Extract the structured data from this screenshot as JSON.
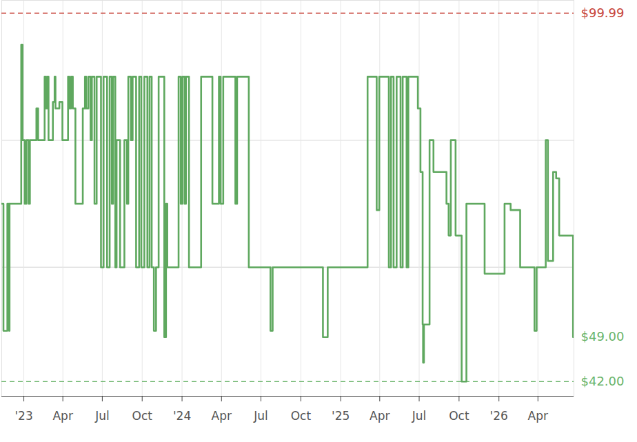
{
  "chart_data": {
    "type": "line",
    "line_style": "step",
    "color": "#5fa85f",
    "grid": true,
    "tick_labels": "x",
    "xlim": [
      "2022-11-11",
      "2026-06-23"
    ],
    "xticks": [
      {
        "value": "2023-01-01",
        "label": "'23"
      },
      {
        "value": "2023-04-01",
        "label": "Apr"
      },
      {
        "value": "2023-07-01",
        "label": "Jul"
      },
      {
        "value": "2023-10-01",
        "label": "Oct"
      },
      {
        "value": "2024-01-01",
        "label": "'24"
      },
      {
        "value": "2024-04-01",
        "label": "Apr"
      },
      {
        "value": "2024-07-01",
        "label": "Jul"
      },
      {
        "value": "2024-10-01",
        "label": "Oct"
      },
      {
        "value": "2025-01-01",
        "label": "'25"
      },
      {
        "value": "2025-04-01",
        "label": "Apr"
      },
      {
        "value": "2025-07-01",
        "label": "Jul"
      },
      {
        "value": "2025-10-01",
        "label": "Oct"
      },
      {
        "value": "2026-01-01",
        "label": "'26"
      },
      {
        "value": "2026-04-01",
        "label": "Apr"
      }
    ],
    "ylim": [
      39.7,
      102
    ],
    "yticks": [
      60,
      80
    ],
    "annotations": [
      {
        "value": 99.99,
        "label": "$99.99",
        "color": "#c8463c",
        "line_style": "dashed"
      },
      {
        "value": 49,
        "label": "$49.00",
        "color": "#6ab46a"
      },
      {
        "value": 42,
        "label": "$42.00",
        "color": "#6ab46a",
        "line_style": "dashed"
      }
    ],
    "x": [
      "2022-11-11",
      "2022-11-15",
      "2022-11-24",
      "2022-11-28",
      "2022-11-29",
      "2022-12-26",
      "2022-12-29",
      "2023-01-03",
      "2023-01-07",
      "2023-01-12",
      "2023-01-15",
      "2023-01-30",
      "2023-02-03",
      "2023-02-18",
      "2023-02-21",
      "2023-02-24",
      "2023-02-27",
      "2023-03-09",
      "2023-03-13",
      "2023-03-15",
      "2023-03-24",
      "2023-03-31",
      "2023-04-13",
      "2023-04-16",
      "2023-04-20",
      "2023-04-24",
      "2023-04-30",
      "2023-05-17",
      "2023-05-22",
      "2023-05-25",
      "2023-05-30",
      "2023-06-04",
      "2023-06-07",
      "2023-06-13",
      "2023-06-18",
      "2023-06-28",
      "2023-07-04",
      "2023-07-12",
      "2023-07-18",
      "2023-07-23",
      "2023-07-26",
      "2023-07-31",
      "2023-08-03",
      "2023-08-11",
      "2023-08-21",
      "2023-08-27",
      "2023-08-30",
      "2023-09-05",
      "2023-09-09",
      "2023-09-17",
      "2023-09-24",
      "2023-09-29",
      "2023-10-06",
      "2023-10-13",
      "2023-10-18",
      "2023-10-23",
      "2023-10-28",
      "2023-11-02",
      "2023-11-08",
      "2023-11-21",
      "2023-11-25",
      "2023-11-28",
      "2023-12-24",
      "2023-12-29",
      "2024-01-02",
      "2024-01-07",
      "2024-01-10",
      "2024-01-17",
      "2024-02-14",
      "2024-03-11",
      "2024-03-26",
      "2024-03-30",
      "2024-04-05",
      "2024-05-03",
      "2024-05-07",
      "2024-06-03",
      "2024-07-23",
      "2024-07-28",
      "2024-11-21",
      "2024-12-02",
      "2025-03-04",
      "2025-03-25",
      "2025-03-31",
      "2025-04-22",
      "2025-04-27",
      "2025-05-03",
      "2025-05-10",
      "2025-05-19",
      "2025-05-24",
      "2025-06-02",
      "2025-06-06",
      "2025-06-28",
      "2025-07-04",
      "2025-07-09",
      "2025-07-10",
      "2025-07-12",
      "2025-07-25",
      "2025-08-03",
      "2025-09-02",
      "2025-09-07",
      "2025-09-12",
      "2025-09-23",
      "2025-10-07",
      "2025-10-18",
      "2025-11-29",
      "2026-01-14",
      "2026-01-28",
      "2026-02-19",
      "2026-03-24",
      "2026-03-29",
      "2026-04-19",
      "2026-04-24",
      "2026-05-06",
      "2026-05-13",
      "2026-05-20",
      "2026-06-21",
      "2026-06-23"
    ],
    "values": [
      69.99,
      49.99,
      69.99,
      49.99,
      69.99,
      95,
      79.99,
      69.99,
      79.99,
      69.99,
      79.99,
      84.99,
      79.99,
      89.99,
      84.99,
      89.99,
      79.99,
      85.99,
      89.99,
      84.99,
      85.99,
      79.99,
      89.99,
      84.99,
      89.99,
      84.99,
      69.99,
      84.99,
      89.99,
      84.99,
      89.99,
      79.99,
      89.99,
      69.99,
      89.99,
      59.99,
      89.99,
      59.99,
      89.99,
      69.99,
      89.99,
      59.99,
      79.99,
      59.99,
      79.99,
      69.99,
      89.99,
      79.99,
      89.99,
      59.99,
      89.99,
      59.99,
      89.99,
      59.99,
      89.99,
      59.99,
      49.99,
      59.99,
      89.99,
      48.99,
      69.99,
      59.99,
      89.99,
      69.99,
      89.99,
      69.99,
      89.99,
      59.99,
      89.99,
      69.99,
      89.99,
      69.99,
      89.99,
      69.99,
      89.99,
      59.99,
      49.99,
      59.99,
      48.99,
      59.99,
      89.99,
      68.99,
      89.99,
      59.99,
      89.99,
      59.99,
      89.99,
      59.99,
      89.99,
      59.99,
      89.99,
      84.99,
      74.99,
      50.99,
      45,
      50.99,
      79.99,
      74.99,
      69.99,
      64.99,
      79.99,
      64.99,
      42,
      69.99,
      58.99,
      69.99,
      68.99,
      59.99,
      49.99,
      59.99,
      79.99,
      60.99,
      74.99,
      73.99,
      64.99,
      48.99,
      48.99
    ]
  }
}
